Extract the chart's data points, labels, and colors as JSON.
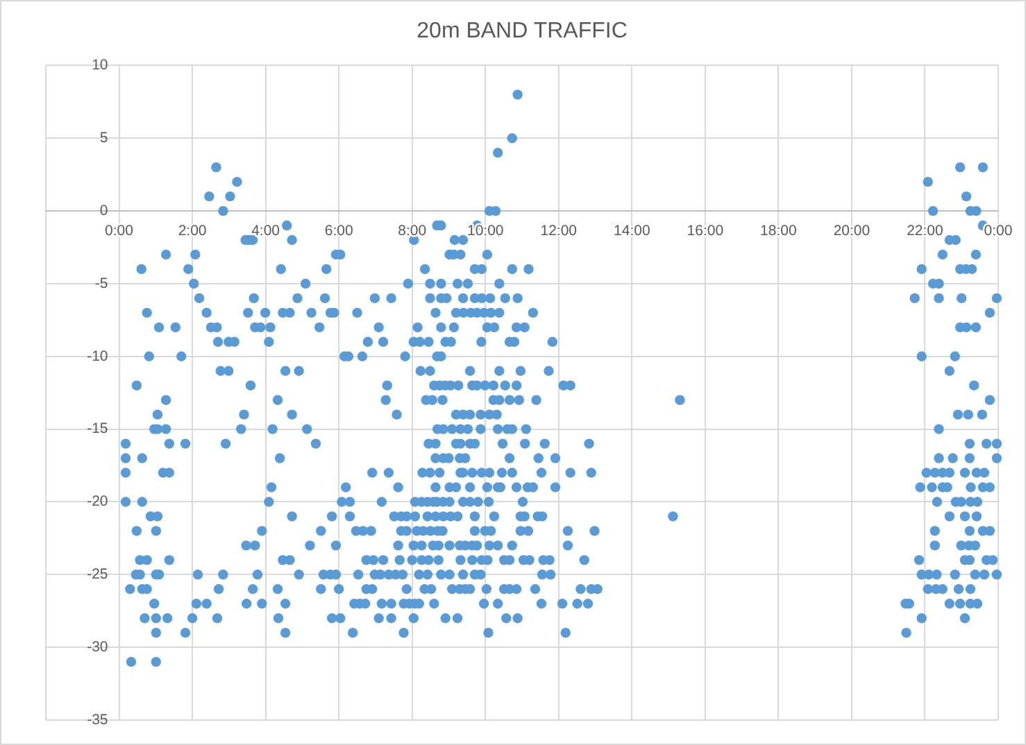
{
  "chart_data": {
    "type": "scatter",
    "title": "20m BAND TRAFFIC",
    "x": [
      0.18,
      0.18,
      0.18,
      0.18,
      0.3,
      0.33,
      0.46,
      0.48,
      0.48,
      0.57,
      0.57,
      0.61,
      0.63,
      0.63,
      0.63,
      0.7,
      0.76,
      0.76,
      0.76,
      0.82,
      0.86,
      0.96,
      0.96,
      1.01,
      1.01,
      1.01,
      1.01,
      1.01,
      1.05,
      1.05,
      1.05,
      1.09,
      1.09,
      1.2,
      1.28,
      1.28,
      1.28,
      1.32,
      1.37,
      1.37,
      1.37,
      1.54,
      1.7,
      1.81,
      1.81,
      1.89,
      2.0,
      2.04,
      2.08,
      2.11,
      2.15,
      2.19,
      2.39,
      2.39,
      2.46,
      2.51,
      2.65,
      2.67,
      2.68,
      2.7,
      2.72,
      2.77,
      2.84,
      2.84,
      2.91,
      2.99,
      2.99,
      3.03,
      3.15,
      3.22,
      3.33,
      3.41,
      3.45,
      3.47,
      3.48,
      3.52,
      3.55,
      3.59,
      3.65,
      3.65,
      3.68,
      3.71,
      3.71,
      3.78,
      3.86,
      3.9,
      3.9,
      3.99,
      4.09,
      4.09,
      4.13,
      4.16,
      4.19,
      4.33,
      4.33,
      4.35,
      4.39,
      4.42,
      4.47,
      4.47,
      4.54,
      4.54,
      4.54,
      4.58,
      4.66,
      4.66,
      4.72,
      4.72,
      4.72,
      4.87,
      4.91,
      4.91,
      5.09,
      5.13,
      5.21,
      5.25,
      5.37,
      5.47,
      5.51,
      5.51,
      5.58,
      5.62,
      5.66,
      5.77,
      5.77,
      5.81,
      5.81,
      5.87,
      5.92,
      5.92,
      5.92,
      6.0,
      6.04,
      6.04,
      6.08,
      6.15,
      6.19,
      6.26,
      6.3,
      6.3,
      6.38,
      6.42,
      6.47,
      6.5,
      6.53,
      6.57,
      6.64,
      6.66,
      6.72,
      6.75,
      6.75,
      6.79,
      6.88,
      6.91,
      6.91,
      6.94,
      6.98,
      6.98,
      7.09,
      7.09,
      7.13,
      7.17,
      7.17,
      7.21,
      7.21,
      7.28,
      7.32,
      7.36,
      7.36,
      7.43,
      7.43,
      7.43,
      7.51,
      7.55,
      7.58,
      7.62,
      7.62,
      7.66,
      7.7,
      7.7,
      7.74,
      7.77,
      7.77,
      7.81,
      7.85,
      7.85,
      7.85,
      7.89,
      7.92,
      8.0,
      8.04,
      8.04,
      8.04,
      8.07,
      8.08,
      8.08,
      8.05,
      8.13,
      8.15,
      8.19,
      8.19,
      8.21,
      8.23,
      8.26,
      8.26,
      8.26,
      8.28,
      8.3,
      8.34,
      8.35,
      8.38,
      8.42,
      8.42,
      8.42,
      8.45,
      8.45,
      8.45,
      8.49,
      8.49,
      8.49,
      8.49,
      8.5,
      8.52,
      8.55,
      8.57,
      8.58,
      8.6,
      8.6,
      8.64,
      8.64,
      8.64,
      8.64,
      8.64,
      8.68,
      8.68,
      8.68,
      8.69,
      8.7,
      8.72,
      8.72,
      8.75,
      8.75,
      8.79,
      8.79,
      8.79,
      8.79,
      8.79,
      8.79,
      8.83,
      8.83,
      8.85,
      8.85,
      8.85,
      8.85,
      8.9,
      8.91,
      8.91,
      8.94,
      9.0,
      9.02,
      9.02,
      9.02,
      9.02,
      9.02,
      9.05,
      9.05,
      9.06,
      9.09,
      9.09,
      9.14,
      9.14,
      9.16,
      9.2,
      9.2,
      9.2,
      9.2,
      9.24,
      9.24,
      9.24,
      9.26,
      9.3,
      9.3,
      9.3,
      9.32,
      9.32,
      9.32,
      9.32,
      9.32,
      9.39,
      9.39,
      9.39,
      9.39,
      9.39,
      9.39,
      9.4,
      9.45,
      9.45,
      9.45,
      9.52,
      9.52,
      9.58,
      9.58,
      9.58,
      9.58,
      9.58,
      9.58,
      9.6,
      9.64,
      9.64,
      9.64,
      9.64,
      9.71,
      9.71,
      9.71,
      9.71,
      9.71,
      9.71,
      9.77,
      9.77,
      9.77,
      9.77,
      9.8,
      9.87,
      9.87,
      9.87,
      9.89,
      9.9,
      9.9,
      9.9,
      9.9,
      9.96,
      9.96,
      9.99,
      9.99,
      10.03,
      10.05,
      10.05,
      10.05,
      10.06,
      10.08,
      10.09,
      10.11,
      10.11,
      10.11,
      10.11,
      10.13,
      10.15,
      10.15,
      10.22,
      10.22,
      10.24,
      10.24,
      10.28,
      10.31,
      10.34,
      10.34,
      10.34,
      10.34,
      10.34,
      10.38,
      10.38,
      10.38,
      10.38,
      10.41,
      10.45,
      10.47,
      10.51,
      10.51,
      10.54,
      10.54,
      10.57,
      10.6,
      10.66,
      10.66,
      10.66,
      10.66,
      10.66,
      10.73,
      10.73,
      10.73,
      10.73,
      10.73,
      10.79,
      10.85,
      10.85,
      10.85,
      10.85,
      10.88,
      10.88,
      10.88,
      10.92,
      10.96,
      10.96,
      10.96,
      11.02,
      11.04,
      11.07,
      11.07,
      11.08,
      11.11,
      11.15,
      11.17,
      11.18,
      11.2,
      11.3,
      11.3,
      11.36,
      11.39,
      11.43,
      11.45,
      11.53,
      11.53,
      11.55,
      11.55,
      11.58,
      11.62,
      11.73,
      11.75,
      11.78,
      11.83,
      11.91,
      11.91,
      12.1,
      12.13,
      12.19,
      12.25,
      12.25,
      12.32,
      12.32,
      12.51,
      12.6,
      12.7,
      12.8,
      12.83,
      12.89,
      12.89,
      12.98,
      13.06,
      15.12,
      15.31,
      21.47,
      21.49,
      21.57,
      21.72,
      21.84,
      21.87,
      21.91,
      21.91,
      21.91,
      21.91,
      22.04,
      22.08,
      22.08,
      22.1,
      22.19,
      22.22,
      22.22,
      22.27,
      22.27,
      22.27,
      22.3,
      22.32,
      22.33,
      22.38,
      22.38,
      22.38,
      22.38,
      22.48,
      22.48,
      22.48,
      22.48,
      22.61,
      22.67,
      22.67,
      22.67,
      22.67,
      22.67,
      22.76,
      22.82,
      22.82,
      22.84,
      22.84,
      22.9,
      22.92,
      22.96,
      22.96,
      22.96,
      22.96,
      22.99,
      22.99,
      23.0,
      23.09,
      23.09,
      23.09,
      23.09,
      23.12,
      23.13,
      23.13,
      23.18,
      23.2,
      23.22,
      23.22,
      23.22,
      23.22,
      23.24,
      23.24,
      23.24,
      23.24,
      23.25,
      23.28,
      23.34,
      23.37,
      23.37,
      23.39,
      23.39,
      23.4,
      23.41,
      23.41,
      23.43,
      23.43,
      23.56,
      23.58,
      23.58,
      23.58,
      23.58,
      23.62,
      23.62,
      23.68,
      23.68,
      23.77,
      23.77,
      23.77,
      23.77,
      23.85,
      23.96,
      23.96,
      23.96,
      23.96
    ],
    "values": [
      -16,
      -17,
      -18,
      -20,
      -26,
      -31,
      -25,
      -12,
      -22,
      -24,
      -25,
      -4,
      -17,
      -20,
      -26,
      -28,
      -7,
      -24,
      -26,
      -10,
      -21,
      -15,
      -27,
      -22,
      -25,
      -28,
      -29,
      -31,
      -14,
      -15,
      -21,
      -8,
      -25,
      -18,
      -3,
      -13,
      -15,
      -28,
      -16,
      -18,
      -24,
      -8,
      -10,
      -16,
      -29,
      -4,
      -28,
      -5,
      -3,
      -27,
      -25,
      -6,
      -7,
      -27,
      1,
      -8,
      3,
      -8,
      -28,
      -9,
      -26,
      -11,
      0,
      -25,
      -16,
      -9,
      -11,
      1,
      -9,
      2,
      -15,
      -14,
      -2,
      -23,
      -27,
      -7,
      -2,
      -12,
      -2,
      -26,
      -6,
      -8,
      -23,
      -25,
      -8,
      -22,
      -27,
      -7,
      -9,
      -20,
      -8,
      -19,
      -15,
      -13,
      -26,
      -28,
      -17,
      -4,
      -7,
      -24,
      -11,
      -27,
      -29,
      -1,
      -7,
      -24,
      -2,
      -14,
      -21,
      -6,
      -11,
      -25,
      -5,
      -15,
      -23,
      -7,
      -16,
      -8,
      -22,
      -26,
      -25,
      -6,
      -4,
      -7,
      -25,
      -21,
      -28,
      -7,
      -3,
      -23,
      -25,
      -26,
      -3,
      -28,
      -20,
      -10,
      -19,
      -10,
      -20,
      -21,
      -29,
      -27,
      -22,
      -7,
      -25,
      -27,
      -10,
      -22,
      -27,
      -24,
      -26,
      -9,
      -22,
      -18,
      -26,
      -24,
      -6,
      -25,
      -8,
      -28,
      -25,
      -20,
      -27,
      -9,
      -24,
      -13,
      -12,
      -18,
      -25,
      -6,
      -27,
      -28,
      -21,
      -25,
      -14,
      -19,
      -23,
      -24,
      -21,
      -22,
      -25,
      -27,
      -29,
      -10,
      -21,
      -22,
      -26,
      -5,
      -27,
      -24,
      -9,
      -23,
      -28,
      -27,
      -20,
      -21,
      -2,
      -22,
      -8,
      -25,
      -27,
      -9,
      -11,
      -20,
      -23,
      -24,
      -18,
      -22,
      -26,
      -4,
      -13,
      -20,
      -21,
      -25,
      -9,
      -16,
      -24,
      -5,
      -6,
      -11,
      -18,
      -22,
      -26,
      -13,
      -23,
      -20,
      -12,
      -27,
      -7,
      -16,
      -17,
      -19,
      -21,
      -1,
      -10,
      -20,
      -15,
      -22,
      -23,
      -24,
      -12,
      -18,
      -1,
      -5,
      -6,
      -8,
      -10,
      -25,
      -13,
      -22,
      -15,
      -17,
      -20,
      -21,
      -12,
      -9,
      -28,
      -6,
      -17,
      -3,
      -19,
      -20,
      -23,
      -25,
      -12,
      -21,
      -9,
      -15,
      -26,
      -3,
      -8,
      -2,
      -7,
      -14,
      -16,
      -19,
      -5,
      -21,
      -28,
      -12,
      -17,
      -23,
      -26,
      -3,
      -15,
      -16,
      -18,
      -24,
      -2,
      -6,
      -14,
      -18,
      -20,
      -25,
      -7,
      -17,
      -23,
      -26,
      -5,
      -15,
      -11,
      -14,
      -16,
      -19,
      -20,
      -26,
      -7,
      -12,
      -18,
      -23,
      -24,
      -4,
      -6,
      -16,
      -21,
      -22,
      -25,
      -1,
      -7,
      -12,
      -23,
      -20,
      -14,
      -15,
      -25,
      -9,
      -4,
      -6,
      -18,
      -24,
      -27,
      -7,
      -12,
      -22,
      -26,
      -3,
      -8,
      -19,
      -24,
      -29,
      -20,
      0,
      -14,
      -18,
      -23,
      -6,
      -7,
      -22,
      -12,
      -13,
      -8,
      -21,
      0,
      -14,
      4,
      -15,
      -19,
      -23,
      -27,
      -5,
      -7,
      -11,
      -13,
      -19,
      -18,
      -16,
      -24,
      -26,
      -6,
      -12,
      -28,
      -15,
      -9,
      -13,
      -17,
      -24,
      -26,
      5,
      -4,
      -15,
      -18,
      -23,
      -9,
      -8,
      -12,
      -19,
      -26,
      8,
      -6,
      -28,
      -13,
      -11,
      -21,
      -22,
      -20,
      -24,
      -8,
      -21,
      -16,
      -15,
      -19,
      -22,
      -4,
      -24,
      -7,
      -19,
      -26,
      -13,
      -21,
      -17,
      -18,
      -27,
      -21,
      -25,
      -24,
      -16,
      -11,
      -24,
      -25,
      -9,
      -17,
      -19,
      -27,
      -12,
      -29,
      -22,
      -23,
      -12,
      -18,
      -27,
      -26,
      -24,
      -27,
      -16,
      -18,
      -26,
      -22,
      -26,
      -21,
      -13,
      -27,
      -29,
      -27,
      -6,
      -24,
      -19,
      -4,
      -10,
      -25,
      -28,
      -18,
      2,
      -26,
      -25,
      -19,
      0,
      -5,
      -18,
      -22,
      -23,
      -26,
      -25,
      -20,
      -5,
      -6,
      -15,
      -17,
      -3,
      -18,
      -19,
      -26,
      -19,
      -2,
      -11,
      -18,
      -21,
      -27,
      -17,
      -10,
      -25,
      -2,
      -20,
      -14,
      -26,
      3,
      -4,
      -8,
      -27,
      -20,
      -23,
      -6,
      -18,
      -21,
      -24,
      -28,
      -4,
      1,
      -8,
      -14,
      -23,
      -16,
      -17,
      -22,
      -24,
      0,
      -20,
      -26,
      -27,
      -19,
      -4,
      -12,
      -23,
      -25,
      -3,
      -8,
      0,
      -18,
      -21,
      -20,
      -27,
      -14,
      3,
      -1,
      -19,
      -22,
      -18,
      -25,
      -16,
      -24,
      -7,
      -13,
      -19,
      -22,
      -24,
      -6,
      -16,
      -17,
      -25
    ],
    "color": "#5b9bd5",
    "marker": "circle",
    "grid": true,
    "xlim": [
      -2,
      24
    ],
    "xticks": [
      {
        "value": -2,
        "label": null
      },
      {
        "value": 0,
        "label": "0:00"
      },
      {
        "value": 2,
        "label": "2:00"
      },
      {
        "value": 4,
        "label": "4:00"
      },
      {
        "value": 6,
        "label": "6:00"
      },
      {
        "value": 8,
        "label": "8:00"
      },
      {
        "value": 10,
        "label": "10:00"
      },
      {
        "value": 12,
        "label": "12:00"
      },
      {
        "value": 14,
        "label": "14:00"
      },
      {
        "value": 16,
        "label": "16:00"
      },
      {
        "value": 18,
        "label": "18:00"
      },
      {
        "value": 20,
        "label": "20:00"
      },
      {
        "value": 22,
        "label": "22:00"
      },
      {
        "value": 24,
        "label": "0:00"
      }
    ],
    "ylim": [
      -35,
      10
    ],
    "yticks": [
      -35,
      -30,
      -25,
      -20,
      -15,
      -10,
      -5,
      0,
      5,
      10
    ]
  }
}
